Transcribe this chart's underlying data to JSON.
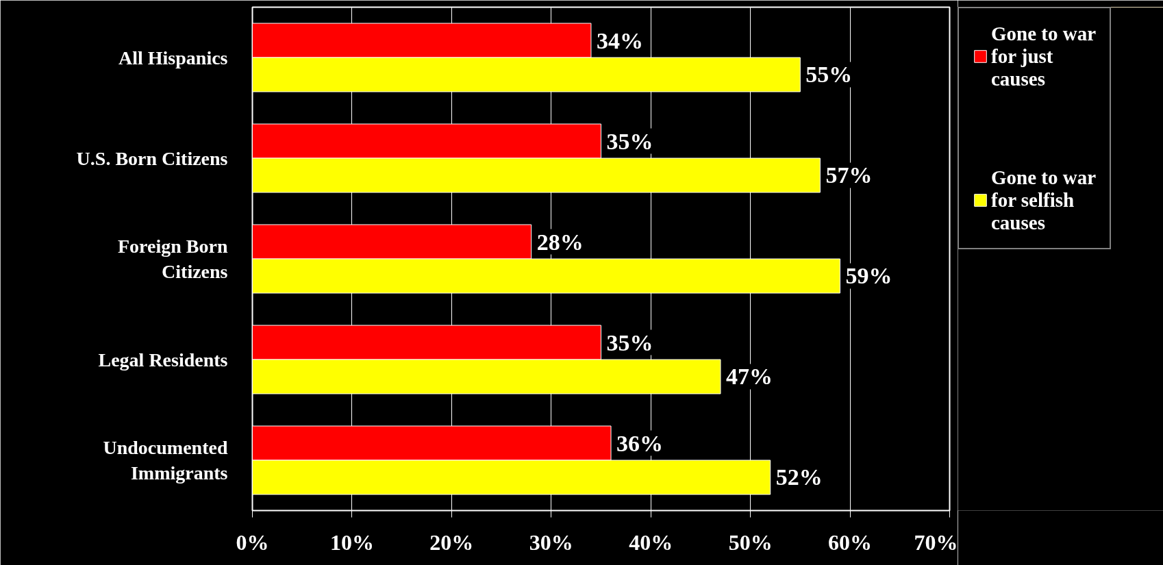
{
  "chart_data": {
    "type": "bar",
    "orientation": "horizontal",
    "categories": [
      "All Hispanics",
      "U.S. Born Citizens",
      "Foreign Born Citizens",
      "Legal Residents",
      "Undocumented Immigrants"
    ],
    "series": [
      {
        "name": "Gone to war for just causes",
        "color": "#ff0000",
        "values": [
          34,
          35,
          28,
          35,
          36
        ],
        "value_labels": [
          "34%",
          "35%",
          "28%",
          "35%",
          "36%"
        ]
      },
      {
        "name": "Gone to war for selfish causes",
        "color": "#ffff00",
        "values": [
          55,
          57,
          59,
          47,
          52
        ],
        "value_labels": [
          "55%",
          "57%",
          "59%",
          "47%",
          "52%"
        ]
      }
    ],
    "xlim": [
      0,
      70
    ],
    "xticks": [
      {
        "value": 0,
        "label": "0%"
      },
      {
        "value": 10,
        "label": "10%"
      },
      {
        "value": 20,
        "label": "20%"
      },
      {
        "value": 30,
        "label": "30%"
      },
      {
        "value": 40,
        "label": "40%"
      },
      {
        "value": 50,
        "label": "50%"
      },
      {
        "value": 60,
        "label": "60%"
      },
      {
        "value": 70,
        "label": "70%"
      }
    ],
    "grid": "x",
    "legend": "right"
  }
}
